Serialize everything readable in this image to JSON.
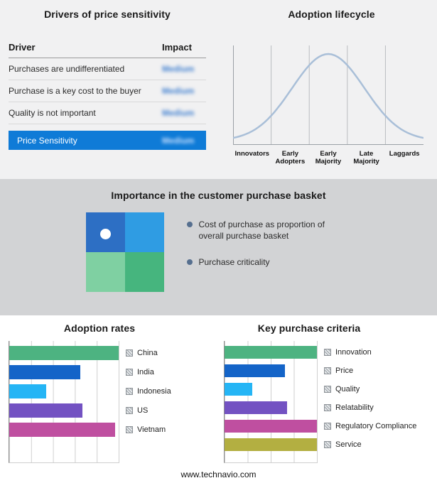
{
  "drivers_panel": {
    "title": "Drivers of price sensitivity",
    "headers": [
      "Driver",
      "Impact"
    ],
    "rows": [
      {
        "driver": "Purchases are undifferentiated",
        "impact": "Medium"
      },
      {
        "driver": "Purchase is a key cost to the buyer",
        "impact": "Medium"
      },
      {
        "driver": "Quality is not important",
        "impact": "Medium"
      }
    ],
    "summary_row": {
      "driver": "Price Sensitivity",
      "impact": "Medium"
    },
    "highlight_color": "#0f7bd7",
    "impact_values_blurred": true
  },
  "basket_panel": {
    "title": "Importance in the customer purchase basket",
    "bullets": [
      "Cost of purchase as proportion of overall purchase basket",
      "Purchase criticality"
    ],
    "quadrant_colors": [
      "#2d6fc4",
      "#2f9ce3",
      "#7fd0a2",
      "#46b57e"
    ],
    "bullet_color": "#566f8f"
  },
  "footer": {
    "url": "www.technavio.com"
  },
  "chart_data": [
    {
      "id": "adoption_lifecycle",
      "type": "line",
      "title": "Adoption lifecycle",
      "x": [
        "Innovators",
        "Early Adopters",
        "Early Majority",
        "Late Majority",
        "Laggards"
      ],
      "values": [
        5,
        55,
        100,
        55,
        5
      ],
      "line_color": "#a9bfd8",
      "note": "Bell-shaped adoption curve; axes unlabeled; vertical gridlines separate the five stages"
    },
    {
      "id": "adoption_rates",
      "type": "bar",
      "orientation": "horizontal",
      "title": "Adoption rates",
      "categories": [
        "China",
        "India",
        "Indonesia",
        "US",
        "Vietnam"
      ],
      "values": [
        100,
        65,
        34,
        67,
        97
      ],
      "colors": [
        "#4db381",
        "#1464c8",
        "#25b5f5",
        "#7352c2",
        "#bf4fa0"
      ],
      "xlim": [
        0,
        100
      ],
      "grid": true,
      "grid_intervals": 5,
      "legend_position": "right"
    },
    {
      "id": "key_purchase_criteria",
      "type": "bar",
      "orientation": "horizontal",
      "title": "Key purchase criteria",
      "categories": [
        "Innovation",
        "Price",
        "Quality",
        "Relatability",
        "Regulatory Compliance",
        "Service"
      ],
      "values": [
        100,
        65,
        30,
        68,
        100,
        100
      ],
      "colors": [
        "#4db381",
        "#1464c8",
        "#25b5f5",
        "#7352c2",
        "#bf4fa0",
        "#b3af41"
      ],
      "xlim": [
        0,
        100
      ],
      "grid": true,
      "grid_intervals": 4,
      "legend_position": "right"
    }
  ]
}
